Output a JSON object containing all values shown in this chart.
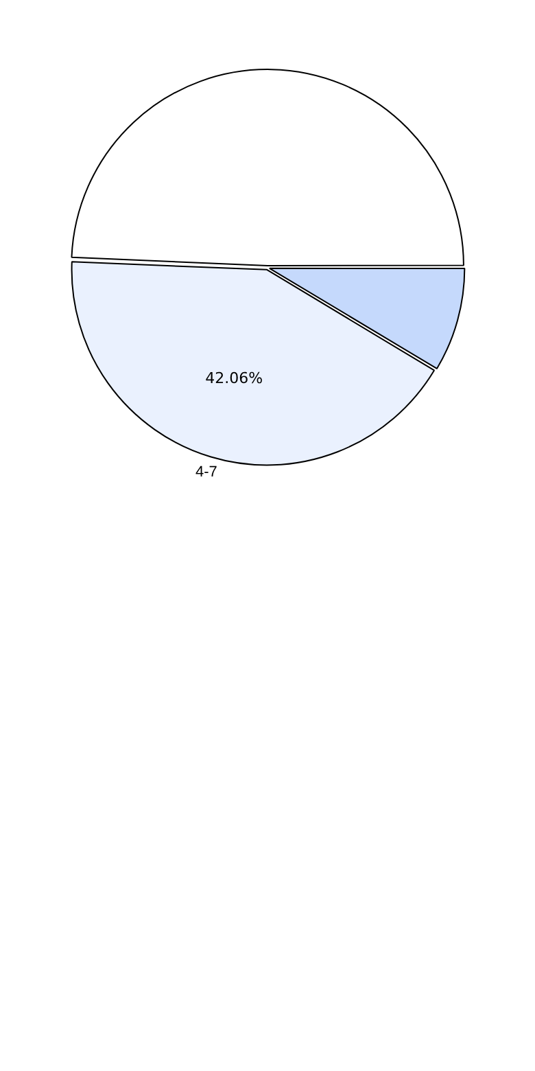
{
  "chart_data": {
    "type": "pie",
    "categories": [
      null,
      "4-7",
      null
    ],
    "values": [
      8.6,
      42.06,
      49.34
    ],
    "colors": [
      "#c5d9fc",
      "#eaf1fe",
      "#ffffff"
    ],
    "value_labels": [
      null,
      "42.06%",
      null
    ],
    "legend": false
  }
}
